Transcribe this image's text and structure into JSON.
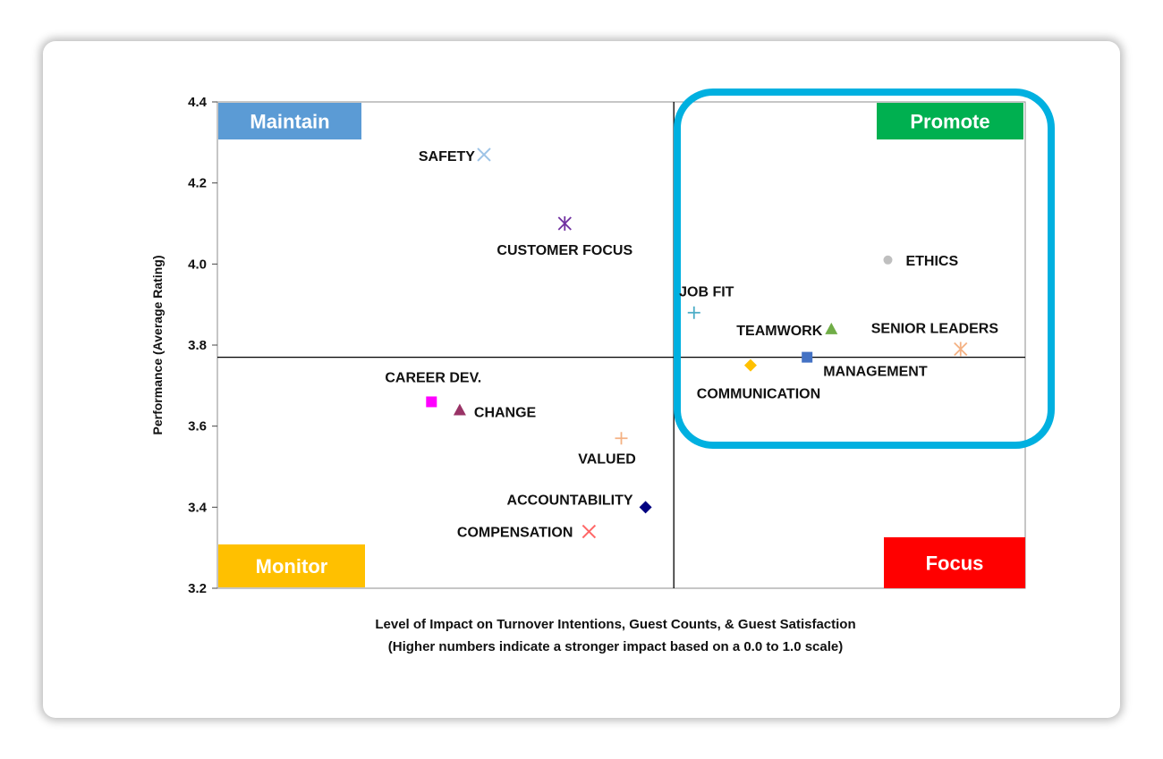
{
  "chart_data": {
    "type": "scatter",
    "xlabel": "Level of Impact on Turnover Intentions, Guest Counts, & Guest Satisfaction",
    "xlabel_note": "(Higher numbers indicate a stronger impact based on a 0.0 to 1.0 scale)",
    "ylabel": "Performance  (Average Rating)",
    "ylim": [
      3.2,
      4.4
    ],
    "xlim": [
      0.0,
      1.0
    ],
    "y_ticks": [
      "3.2",
      "3.4",
      "3.6",
      "3.8",
      "4.0",
      "4.2",
      "4.4"
    ],
    "x_divider": 0.565,
    "y_divider": 3.77,
    "quadrants": [
      {
        "label": "Maintain",
        "color": "#5b9bd5",
        "position": "top-left"
      },
      {
        "label": "Promote",
        "color": "#00b050",
        "position": "top-right"
      },
      {
        "label": "Monitor",
        "color": "#ffc000",
        "position": "bottom-left"
      },
      {
        "label": "Focus",
        "color": "#ff0000",
        "position": "bottom-right"
      }
    ],
    "highlight": {
      "region": "Promote",
      "color": "#00b0e0"
    },
    "points": [
      {
        "label": "SAFETY",
        "x": 0.33,
        "y": 4.27,
        "marker": "x",
        "color": "#9dc3e6"
      },
      {
        "label": "CUSTOMER FOCUS",
        "x": 0.43,
        "y": 4.1,
        "marker": "asterisk",
        "color": "#7030a0"
      },
      {
        "label": "ETHICS",
        "x": 0.83,
        "y": 4.01,
        "marker": "circle",
        "color": "#bfbfbf"
      },
      {
        "label": "JOB FIT",
        "x": 0.59,
        "y": 3.88,
        "marker": "plus",
        "color": "#4bacc6"
      },
      {
        "label": "TEAMWORK",
        "x": 0.76,
        "y": 3.84,
        "marker": "triangle",
        "color": "#70ad47"
      },
      {
        "label": "SENIOR LEADERS",
        "x": 0.92,
        "y": 3.79,
        "marker": "asterisk",
        "color": "#f4b183"
      },
      {
        "label": "MANAGEMENT",
        "x": 0.73,
        "y": 3.77,
        "marker": "square",
        "color": "#4472c4"
      },
      {
        "label": "COMMUNICATION",
        "x": 0.66,
        "y": 3.75,
        "marker": "diamond",
        "color": "#ffc000"
      },
      {
        "label": "CAREER DEV.",
        "x": 0.265,
        "y": 3.66,
        "marker": "square",
        "color": "#ff00ff"
      },
      {
        "label": "CHANGE",
        "x": 0.3,
        "y": 3.64,
        "marker": "triangle",
        "color": "#993366"
      },
      {
        "label": "VALUED",
        "x": 0.5,
        "y": 3.57,
        "marker": "plus",
        "color": "#f4b183"
      },
      {
        "label": "ACCOUNTABILITY",
        "x": 0.53,
        "y": 3.4,
        "marker": "diamond",
        "color": "#000080"
      },
      {
        "label": "COMPENSATION",
        "x": 0.46,
        "y": 3.34,
        "marker": "x",
        "color": "#ff6666"
      }
    ]
  }
}
